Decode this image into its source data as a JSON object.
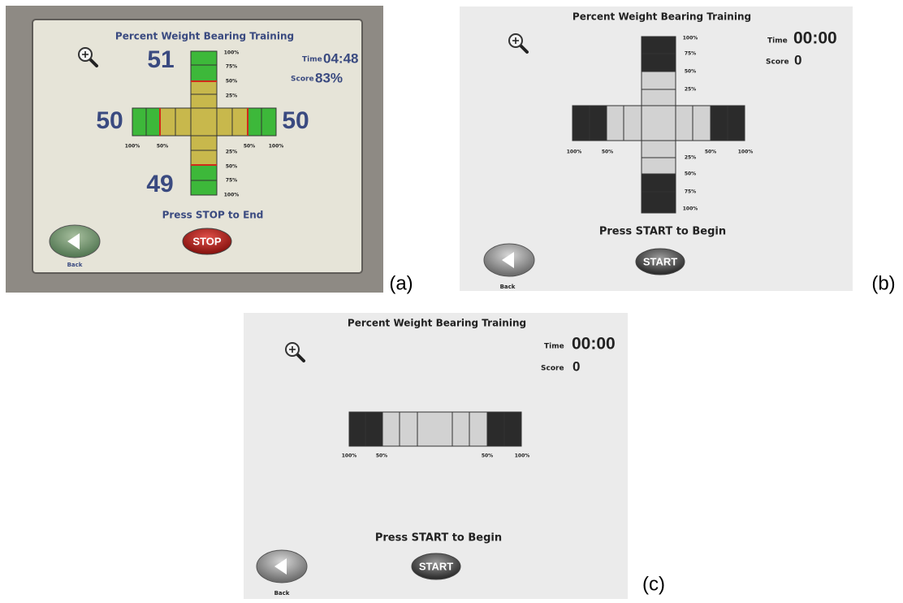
{
  "panels": [
    {
      "label": "(a)",
      "title": "Percent Weight Bearing Training",
      "time_label": "Time",
      "time": "04:48",
      "score_label": "Score",
      "score": "83%",
      "readings": {
        "top": "51",
        "left": "50",
        "right": "50",
        "bottom": "49"
      },
      "top_scale": [
        "100%",
        "75%",
        "50%",
        "25%"
      ],
      "bottom_scale": [
        "25%",
        "50%",
        "75%",
        "100%"
      ],
      "horizontal_scale": [
        "100%",
        "50%",
        "50%",
        "100%"
      ],
      "message": "Press STOP to End",
      "back": "Back",
      "action": "STOP"
    },
    {
      "label": "(b)",
      "title": "Percent Weight Bearing Training",
      "time_label": "Time",
      "time": "00:00",
      "score_label": "Score",
      "score": "0",
      "top_scale": [
        "100%",
        "75%",
        "50%",
        "25%"
      ],
      "bottom_scale": [
        "25%",
        "50%",
        "75%",
        "100%"
      ],
      "horizontal_scale": [
        "100%",
        "50%",
        "50%",
        "100%"
      ],
      "message": "Press START to Begin",
      "back": "Back",
      "action": "START"
    },
    {
      "label": "(c)",
      "title": "Percent Weight Bearing Training",
      "time_label": "Time",
      "time": "00:00",
      "score_label": "Score",
      "score": "0",
      "horizontal_scale": [
        "100%",
        "50%",
        "50%",
        "100%"
      ],
      "message": "Press START to Begin",
      "back": "Back",
      "action": "START"
    }
  ]
}
